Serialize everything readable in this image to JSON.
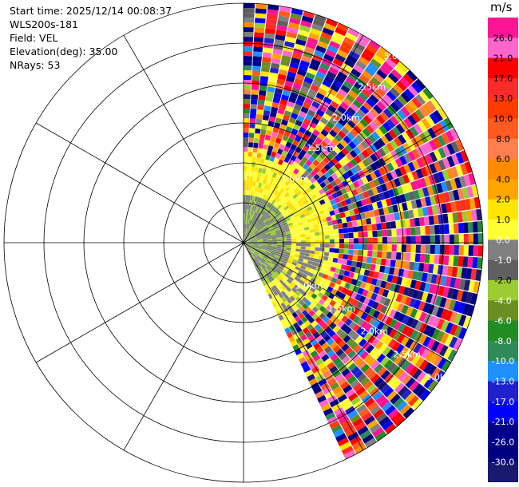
{
  "header": {
    "start_time": "Start time: 2025/12/14 00:08:37",
    "station": "WLS200s-181",
    "field": "Field: VEL",
    "elevation": "Elevation(deg): 35.00",
    "nrays": "NRays: 53"
  },
  "chart_data": {
    "type": "polar-ppi",
    "field": "VEL",
    "units": "m/s",
    "nrays": 53,
    "azimuth_start_deg": 0,
    "azimuth_end_deg": 155,
    "range_rings_km": [
      0.5,
      1.0,
      1.5,
      2.0,
      2.5,
      3.0
    ],
    "max_range_km": 3.0,
    "ring_labels": [
      "1.0km",
      "1.5km",
      "2.0km",
      "2.5km",
      "3.0km"
    ],
    "colorbar_ticks": [
      "26.0",
      "21.0",
      "17.0",
      "13.0",
      "10.0",
      "8.0",
      "6.0",
      "4.0",
      "2.0",
      "1.0",
      "0.0",
      "-1.0",
      "-2.0",
      "-4.0",
      "-6.0",
      "-8.0",
      "-10.0",
      "-13.0",
      "-17.0",
      "-21.0",
      "-26.0",
      "-30.0"
    ],
    "colorbar_colors": [
      "#ff1493",
      "#ff66cc",
      "#ff0000",
      "#ff2a2a",
      "#ff3b00",
      "#ff5a1f",
      "#ff7f50",
      "#ff8c00",
      "#ffa500",
      "#ffe600",
      "#ffff33",
      "#808080",
      "#606060",
      "#9acd32",
      "#6b8e23",
      "#228b22",
      "#2e8b57",
      "#1e90ff",
      "#2020cd",
      "#0000ff",
      "#00008b",
      "#000080",
      "#191970"
    ],
    "near_field_pattern": [
      {
        "range_km": [
          0.0,
          0.55
        ],
        "values": [
          0.0,
          -1.0,
          -2.0
        ]
      },
      {
        "range_km": [
          0.55,
          1.05
        ],
        "values": [
          2.0,
          4.0,
          1.0,
          0.0
        ]
      },
      {
        "range_km": [
          1.05,
          3.0
        ],
        "values": [
          "noise"
        ]
      }
    ]
  }
}
